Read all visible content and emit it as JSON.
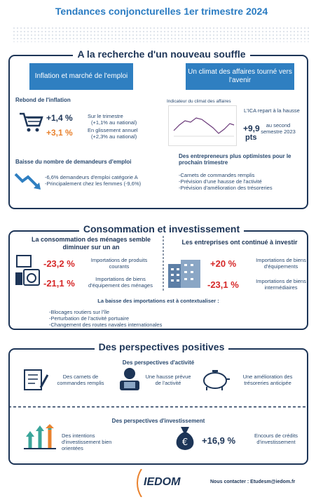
{
  "header": {
    "title": "Tendances conjoncturelles 1er trimestre 2024"
  },
  "section1": {
    "heading": "A la recherche d'un nouveau souffle",
    "left": {
      "box_title": "Inflation et marché de l'emploi",
      "inflation": {
        "title": "Rebond de l'inflation",
        "items": [
          {
            "value": "+1,4 %",
            "label": "Sur le trimestre",
            "note": "(+1,1% au national)"
          },
          {
            "value": "+3,1 %",
            "label": "En glissement annuel",
            "note": "(+2,3% au national)"
          }
        ]
      },
      "employment": {
        "title": "Baisse du nombre de demandeurs d'emploi",
        "lines": [
          "-6,6% demandeurs d'emploi catégorie A",
          "-Principalement chez les femmes (-9,6%)"
        ]
      }
    },
    "right": {
      "box_title": "Un climat des affaires tourné vers l'avenir",
      "chart_title": "Indicateur du climat des affaires",
      "ica_label": "L'ICA repart à la hausse",
      "ica_value": "+9,9",
      "ica_unit": "pts",
      "ica_period": "au second semestre 2023",
      "outlook_title": "Des entrepreneurs plus optimistes pour le prochain trimestre",
      "outlook_items": [
        "-Carnets de commandes remplis",
        "-Prévision d'une hausse de l'activité",
        "-Prévision d'amélioration des trésoreries"
      ]
    }
  },
  "section2": {
    "heading": "Consommation et investissement",
    "households": {
      "title": "La consommation des ménages semble diminuer sur un an",
      "items": [
        {
          "value": "-23,2 %",
          "label": "Importations de produits courants"
        },
        {
          "value": "-21,1 %",
          "label": "Importations de biens d'équipement des ménages"
        }
      ]
    },
    "companies": {
      "title": "Les entreprises ont continué à investir",
      "items": [
        {
          "value": "+20 %",
          "label": "Importations de biens d'équipements"
        },
        {
          "value": "-23,1 %",
          "label": "Importations de biens intermédiaires"
        }
      ]
    },
    "context": {
      "title": "La baisse des importations est à contextualiser :",
      "items": [
        "-Blocages routiers sur l'île",
        "-Perturbation de l'activité portuaire",
        "-Changement des routes navales internationales"
      ]
    }
  },
  "section3": {
    "heading": "Des perspectives positives",
    "activity": {
      "title": "Des perspectives d'activité",
      "items": [
        "Des carnets de commandes remplis",
        "Une hausse prévue de l'activité",
        "Une amélioration des trésoreries anticipée"
      ]
    },
    "investment": {
      "title": "Des perspectives d'investissement",
      "intentions": "Des intentions d'investissement bien orientées",
      "value": "+16,9 %",
      "label": "Encours de crédits d'investissement"
    }
  },
  "footer": {
    "logo": "IEDOM",
    "contact": "Nous contacter : Etudesm@iedom.fr"
  }
}
